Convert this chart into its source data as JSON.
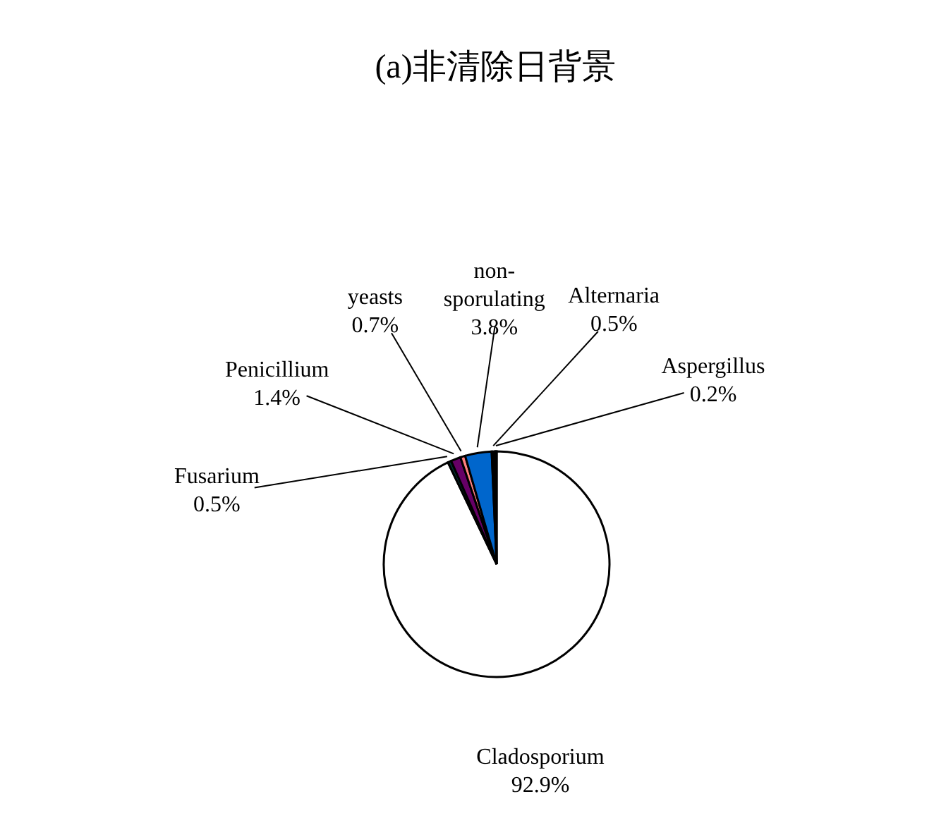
{
  "chart_data": {
    "type": "pie",
    "title": "(a)非清除日背景",
    "categories": [
      "Cladosporium",
      "Fusarium",
      "Penicillium",
      "yeasts",
      "non-sporulating",
      "Alternaria",
      "Aspergillus"
    ],
    "values": [
      92.9,
      0.5,
      1.4,
      0.7,
      3.8,
      0.5,
      0.2
    ],
    "value_labels": [
      "92.9%",
      "0.5%",
      "1.4%",
      "0.7%",
      "3.8%",
      "0.5%",
      "0.2%"
    ],
    "colors": [
      "#ffffff",
      "#003333",
      "#660066",
      "#ff8080",
      "#0066cc",
      "#000000",
      "#000000"
    ],
    "legend": false
  }
}
